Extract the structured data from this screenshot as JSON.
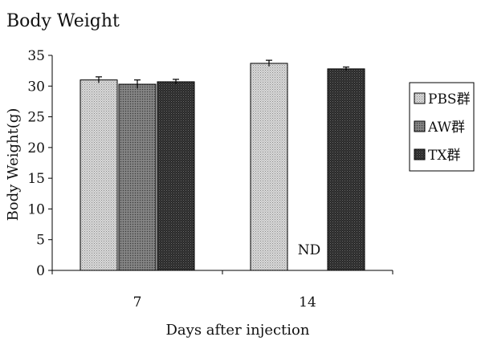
{
  "chart_data": {
    "type": "bar",
    "title": "Body Weight",
    "xlabel": "Days after injection",
    "ylabel": "Body Weight(g)",
    "categories": [
      "7",
      "14"
    ],
    "ylim": [
      0,
      35
    ],
    "yticks": [
      0,
      5,
      10,
      15,
      20,
      25,
      30,
      35
    ],
    "grid": false,
    "legend_position": "right",
    "series": [
      {
        "name": "PBS群",
        "values": [
          31.0,
          33.7
        ],
        "errors": [
          0.5,
          0.5
        ],
        "color": "#c8c8c8",
        "pattern": "light-dots"
      },
      {
        "name": "AW群",
        "values": [
          30.3,
          null
        ],
        "errors": [
          0.7,
          null
        ],
        "color": "#6e6e6e",
        "pattern": "medium-dots"
      },
      {
        "name": "TX群",
        "values": [
          30.7,
          32.8
        ],
        "errors": [
          0.4,
          0.3
        ],
        "color": "#303030",
        "pattern": "dark-dots"
      }
    ],
    "annotations": [
      {
        "text": "ND",
        "category": "14",
        "series": "AW群"
      }
    ]
  }
}
